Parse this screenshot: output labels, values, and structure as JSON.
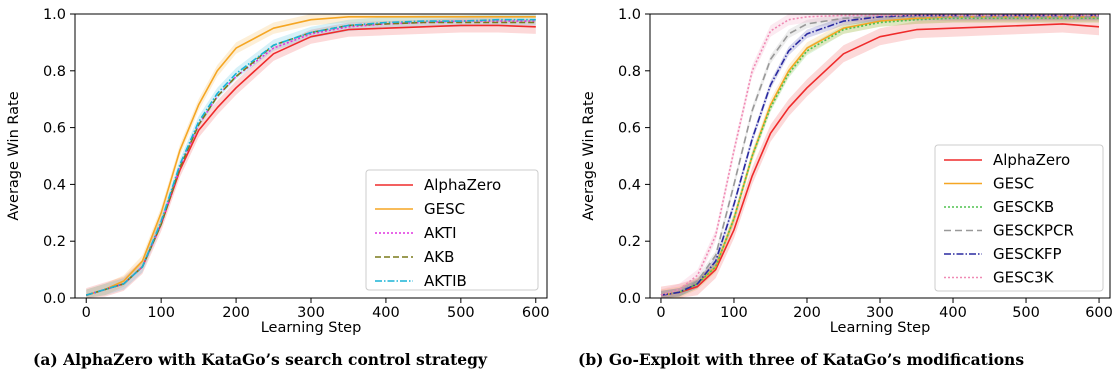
{
  "captions": {
    "a": "(a) AlphaZero with KataGo’s search control strategy",
    "b": "(b) Go-Exploit with three of KataGo’s modifications"
  },
  "chart_data": [
    {
      "type": "line",
      "title": "",
      "xlabel": "Learning Step",
      "ylabel": "Average Win Rate",
      "xlim": [
        -15,
        615
      ],
      "ylim": [
        0.0,
        1.0
      ],
      "xticks": [
        "0",
        "100",
        "200",
        "300",
        "400",
        "500",
        "600"
      ],
      "yticks": [
        "0.0",
        "0.2",
        "0.4",
        "0.6",
        "0.8",
        "1.0"
      ],
      "grid": false,
      "legend": "lower-right",
      "x": [
        0,
        25,
        50,
        75,
        100,
        125,
        150,
        175,
        200,
        250,
        300,
        350,
        400,
        450,
        500,
        550,
        600
      ],
      "series": [
        {
          "name": "AlphaZero",
          "color": "#ef2b2b",
          "dash": "",
          "band": 0.025,
          "values": [
            0.01,
            0.03,
            0.05,
            0.11,
            0.26,
            0.45,
            0.59,
            0.67,
            0.74,
            0.86,
            0.92,
            0.945,
            0.95,
            0.955,
            0.96,
            0.96,
            0.955
          ]
        },
        {
          "name": "GESC",
          "color": "#f5a623",
          "dash": "",
          "band": 0.02,
          "values": [
            0.01,
            0.03,
            0.06,
            0.13,
            0.3,
            0.52,
            0.68,
            0.8,
            0.88,
            0.95,
            0.98,
            0.99,
            0.99,
            0.99,
            0.99,
            0.99,
            0.99
          ]
        },
        {
          "name": "AKTI",
          "color": "#e134e1",
          "dash": "2,2",
          "band": 0.0,
          "values": [
            0.01,
            0.03,
            0.05,
            0.11,
            0.26,
            0.46,
            0.61,
            0.71,
            0.78,
            0.88,
            0.93,
            0.955,
            0.965,
            0.97,
            0.975,
            0.975,
            0.975
          ]
        },
        {
          "name": "AKB",
          "color": "#7a7a1a",
          "dash": "6,3",
          "band": 0.0,
          "values": [
            0.01,
            0.03,
            0.05,
            0.11,
            0.26,
            0.46,
            0.61,
            0.71,
            0.78,
            0.89,
            0.935,
            0.96,
            0.965,
            0.97,
            0.97,
            0.97,
            0.97
          ]
        },
        {
          "name": "AKTIB",
          "color": "#19b3d6",
          "dash": "7,2,1.5,2",
          "band": 0.02,
          "values": [
            0.01,
            0.03,
            0.05,
            0.11,
            0.27,
            0.47,
            0.62,
            0.72,
            0.79,
            0.89,
            0.935,
            0.96,
            0.97,
            0.975,
            0.975,
            0.98,
            0.98
          ]
        }
      ]
    },
    {
      "type": "line",
      "title": "",
      "xlabel": "Learning Step",
      "ylabel": "Average Win Rate",
      "xlim": [
        -15,
        615
      ],
      "ylim": [
        0.0,
        1.0
      ],
      "xticks": [
        "0",
        "100",
        "200",
        "300",
        "400",
        "500",
        "600"
      ],
      "yticks": [
        "0.0",
        "0.2",
        "0.4",
        "0.6",
        "0.8",
        "1.0"
      ],
      "grid": false,
      "legend": "lower-right",
      "x": [
        0,
        25,
        50,
        75,
        100,
        125,
        150,
        175,
        200,
        250,
        300,
        350,
        400,
        450,
        500,
        550,
        600
      ],
      "series": [
        {
          "name": "AlphaZero",
          "color": "#ef2b2b",
          "dash": "",
          "band": 0.03,
          "values": [
            0.01,
            0.02,
            0.04,
            0.1,
            0.24,
            0.43,
            0.58,
            0.67,
            0.74,
            0.86,
            0.92,
            0.945,
            0.95,
            0.955,
            0.96,
            0.965,
            0.955
          ]
        },
        {
          "name": "GESC",
          "color": "#f5a623",
          "dash": "",
          "band": 0.02,
          "values": [
            0.01,
            0.02,
            0.05,
            0.11,
            0.28,
            0.5,
            0.68,
            0.8,
            0.88,
            0.95,
            0.975,
            0.985,
            0.99,
            0.99,
            0.99,
            0.99,
            0.99
          ]
        },
        {
          "name": "GESCKB",
          "color": "#4fc24f",
          "dash": "2,2",
          "band": 0.015,
          "values": [
            0.01,
            0.02,
            0.05,
            0.11,
            0.28,
            0.5,
            0.67,
            0.79,
            0.87,
            0.945,
            0.97,
            0.98,
            0.985,
            0.985,
            0.985,
            0.985,
            0.985
          ]
        },
        {
          "name": "GESCKPCR",
          "color": "#999999",
          "dash": "7,4",
          "band": 0.015,
          "values": [
            0.01,
            0.02,
            0.06,
            0.15,
            0.4,
            0.66,
            0.84,
            0.93,
            0.965,
            0.985,
            0.99,
            0.99,
            0.99,
            0.99,
            0.99,
            0.99,
            0.99
          ]
        },
        {
          "name": "GESCKFP",
          "color": "#2a2aa0",
          "dash": "7,2,1.5,2",
          "band": 0.015,
          "values": [
            0.01,
            0.02,
            0.05,
            0.13,
            0.33,
            0.56,
            0.75,
            0.87,
            0.93,
            0.975,
            0.99,
            0.995,
            0.995,
            0.995,
            0.995,
            0.995,
            0.995
          ]
        },
        {
          "name": "GESC3K",
          "color": "#f08ab4",
          "dash": "2,2",
          "band": 0.02,
          "values": [
            0.01,
            0.03,
            0.08,
            0.22,
            0.52,
            0.8,
            0.94,
            0.98,
            0.99,
            0.995,
            0.995,
            0.995,
            0.995,
            0.995,
            0.995,
            0.995,
            0.995
          ]
        }
      ]
    }
  ]
}
